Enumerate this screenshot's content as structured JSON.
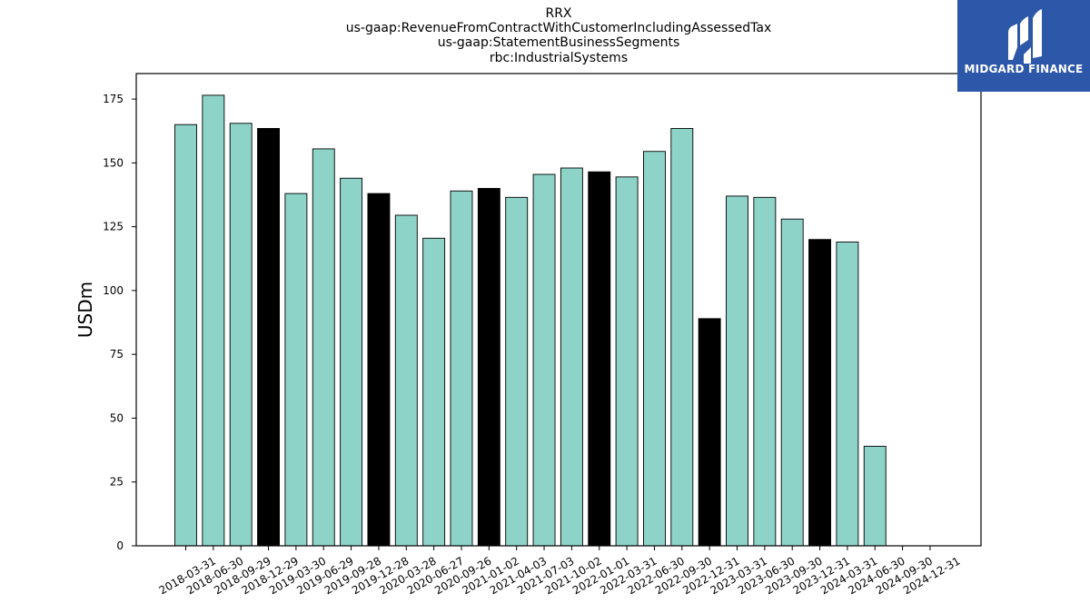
{
  "title_lines": [
    "RRX",
    "us-gaap:RevenueFromContractWithCustomerIncludingAssessedTax",
    "us-gaap:StatementBusinessSegments",
    "rbc:IndustrialSystems"
  ],
  "logo": {
    "text": "MIDGARD FINANCE",
    "icon": "midgard-logo-icon",
    "background": "#2d57a8"
  },
  "chart_data": {
    "type": "bar",
    "ylabel": "USDm",
    "xlabel": "",
    "ylim": [
      0,
      185
    ],
    "yticks": [
      0,
      25,
      50,
      75,
      100,
      125,
      150,
      175
    ],
    "categories": [
      "2018-03-31",
      "2018-06-30",
      "2018-09-29",
      "2018-12-29",
      "2019-03-30",
      "2019-06-29",
      "2019-09-28",
      "2019-12-28",
      "2020-03-28",
      "2020-06-27",
      "2020-09-26",
      "2021-01-02",
      "2021-04-03",
      "2021-07-03",
      "2021-10-02",
      "2022-01-01",
      "2022-03-31",
      "2022-06-30",
      "2022-09-30",
      "2022-12-31",
      "2023-03-31",
      "2023-06-30",
      "2023-09-30",
      "2023-12-31",
      "2024-03-31",
      "2024-06-30",
      "2024-09-30",
      "2024-12-31"
    ],
    "values": [
      165,
      176.5,
      165.5,
      163.5,
      138,
      155.5,
      144,
      138,
      129.5,
      120.5,
      139,
      140,
      136.5,
      145.5,
      148,
      146.5,
      144.5,
      154.5,
      163.5,
      89,
      137,
      136.5,
      128,
      120,
      119,
      39,
      null,
      null
    ],
    "highlight": [
      false,
      false,
      false,
      true,
      false,
      false,
      false,
      true,
      false,
      false,
      false,
      true,
      false,
      false,
      false,
      true,
      false,
      false,
      false,
      true,
      false,
      false,
      false,
      true,
      false,
      false,
      false,
      false
    ],
    "colors": {
      "bar": "#8dd3c7",
      "highlight": "#000000"
    },
    "grid": false,
    "legend": "none"
  }
}
